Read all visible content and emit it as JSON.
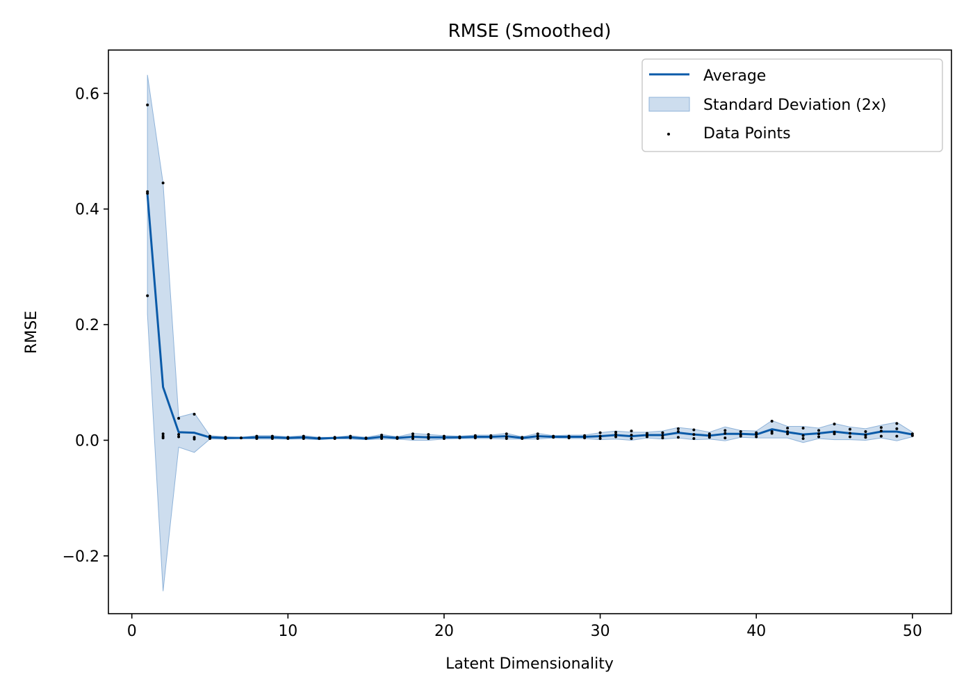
{
  "chart_data": {
    "type": "line",
    "title": "RMSE (Smoothed)",
    "xlabel": "Latent Dimensionality",
    "ylabel": "RMSE",
    "xlim": [
      -1.5,
      52.5
    ],
    "ylim": [
      -0.3,
      0.675
    ],
    "xticks": [
      0,
      10,
      20,
      30,
      40,
      50
    ],
    "xtick_labels": [
      "0",
      "10",
      "20",
      "30",
      "40",
      "50"
    ],
    "yticks": [
      -0.2,
      0.0,
      0.2,
      0.4,
      0.6
    ],
    "ytick_labels": [
      "−0.2",
      "0.0",
      "0.2",
      "0.4",
      "0.6"
    ],
    "grid": false,
    "legend_position": "top-right",
    "colors": {
      "line": "#0a5aa8",
      "band": "#bcd2e8",
      "band_edge": "#8fb3d9",
      "points": "#000000"
    },
    "series": [
      {
        "name": "Average",
        "kind": "line",
        "x": [
          1,
          2,
          3,
          4,
          5,
          6,
          7,
          8,
          9,
          10,
          11,
          12,
          13,
          14,
          15,
          16,
          17,
          18,
          19,
          20,
          21,
          22,
          23,
          24,
          25,
          26,
          27,
          28,
          29,
          30,
          31,
          32,
          33,
          34,
          35,
          36,
          37,
          38,
          39,
          40,
          41,
          42,
          43,
          44,
          45,
          46,
          47,
          48,
          49,
          50
        ],
        "y": [
          0.425,
          0.092,
          0.014,
          0.013,
          0.005,
          0.004,
          0.004,
          0.005,
          0.005,
          0.004,
          0.005,
          0.003,
          0.004,
          0.005,
          0.003,
          0.006,
          0.004,
          0.006,
          0.005,
          0.005,
          0.005,
          0.006,
          0.006,
          0.007,
          0.004,
          0.007,
          0.006,
          0.006,
          0.006,
          0.007,
          0.009,
          0.007,
          0.009,
          0.009,
          0.013,
          0.01,
          0.008,
          0.011,
          0.011,
          0.01,
          0.019,
          0.014,
          0.01,
          0.012,
          0.015,
          0.012,
          0.01,
          0.015,
          0.015,
          0.01
        ]
      },
      {
        "name": "Standard Deviation (2x)",
        "kind": "band",
        "x": [
          1,
          2,
          3,
          4,
          5,
          6,
          7,
          8,
          9,
          10,
          11,
          12,
          13,
          14,
          15,
          16,
          17,
          18,
          19,
          20,
          21,
          22,
          23,
          24,
          25,
          26,
          27,
          28,
          29,
          30,
          31,
          32,
          33,
          34,
          35,
          36,
          37,
          38,
          39,
          40,
          41,
          42,
          43,
          44,
          45,
          46,
          47,
          48,
          49,
          50
        ],
        "upper": [
          0.632,
          0.445,
          0.04,
          0.047,
          0.008,
          0.006,
          0.005,
          0.008,
          0.008,
          0.006,
          0.008,
          0.005,
          0.005,
          0.008,
          0.005,
          0.01,
          0.006,
          0.012,
          0.01,
          0.008,
          0.007,
          0.009,
          0.009,
          0.012,
          0.006,
          0.012,
          0.008,
          0.009,
          0.009,
          0.013,
          0.016,
          0.014,
          0.014,
          0.016,
          0.022,
          0.019,
          0.014,
          0.023,
          0.017,
          0.016,
          0.034,
          0.024,
          0.024,
          0.021,
          0.029,
          0.023,
          0.02,
          0.026,
          0.031,
          0.014
        ],
        "lower": [
          0.218,
          -0.261,
          -0.012,
          -0.021,
          0.002,
          0.002,
          0.003,
          0.002,
          0.002,
          0.002,
          0.002,
          0.001,
          0.003,
          0.002,
          0.001,
          0.002,
          0.002,
          0.0,
          0.0,
          0.002,
          0.003,
          0.003,
          0.003,
          0.002,
          0.002,
          0.002,
          0.004,
          0.003,
          0.003,
          0.001,
          0.002,
          0.0,
          0.004,
          0.002,
          0.004,
          0.001,
          0.002,
          -0.001,
          0.005,
          0.004,
          0.004,
          0.004,
          -0.004,
          0.003,
          0.001,
          0.001,
          0.0,
          0.004,
          -0.001,
          0.006
        ]
      },
      {
        "name": "Data Points",
        "kind": "scatter",
        "points": [
          [
            1,
            0.58
          ],
          [
            1,
            0.43
          ],
          [
            1,
            0.427
          ],
          [
            1,
            0.25
          ],
          [
            2,
            0.445
          ],
          [
            2,
            0.011
          ],
          [
            2,
            0.007
          ],
          [
            2,
            0.004
          ],
          [
            3,
            0.038
          ],
          [
            3,
            0.01
          ],
          [
            3,
            0.006
          ],
          [
            4,
            0.045
          ],
          [
            4,
            0.005
          ],
          [
            4,
            0.002
          ],
          [
            5,
            0.007
          ],
          [
            5,
            0.004
          ],
          [
            5,
            0.003
          ],
          [
            6,
            0.005
          ],
          [
            6,
            0.004
          ],
          [
            6,
            0.003
          ],
          [
            7,
            0.004
          ],
          [
            7,
            0.004
          ],
          [
            8,
            0.007
          ],
          [
            8,
            0.005
          ],
          [
            8,
            0.003
          ],
          [
            9,
            0.007
          ],
          [
            9,
            0.005
          ],
          [
            9,
            0.003
          ],
          [
            10,
            0.005
          ],
          [
            10,
            0.003
          ],
          [
            11,
            0.007
          ],
          [
            11,
            0.005
          ],
          [
            11,
            0.003
          ],
          [
            12,
            0.004
          ],
          [
            12,
            0.003
          ],
          [
            13,
            0.005
          ],
          [
            13,
            0.003
          ],
          [
            14,
            0.007
          ],
          [
            14,
            0.004
          ],
          [
            15,
            0.004
          ],
          [
            15,
            0.003
          ],
          [
            16,
            0.009
          ],
          [
            16,
            0.006
          ],
          [
            16,
            0.003
          ],
          [
            17,
            0.005
          ],
          [
            17,
            0.003
          ],
          [
            18,
            0.011
          ],
          [
            18,
            0.007
          ],
          [
            18,
            0.003
          ],
          [
            19,
            0.01
          ],
          [
            19,
            0.006
          ],
          [
            19,
            0.003
          ],
          [
            20,
            0.007
          ],
          [
            20,
            0.003
          ],
          [
            21,
            0.006
          ],
          [
            21,
            0.004
          ],
          [
            22,
            0.008
          ],
          [
            22,
            0.006
          ],
          [
            22,
            0.004
          ],
          [
            23,
            0.008
          ],
          [
            23,
            0.006
          ],
          [
            23,
            0.004
          ],
          [
            24,
            0.011
          ],
          [
            24,
            0.006
          ],
          [
            24,
            0.003
          ],
          [
            25,
            0.005
          ],
          [
            25,
            0.003
          ],
          [
            26,
            0.011
          ],
          [
            26,
            0.007
          ],
          [
            26,
            0.003
          ],
          [
            27,
            0.007
          ],
          [
            27,
            0.005
          ],
          [
            28,
            0.007
          ],
          [
            28,
            0.004
          ],
          [
            29,
            0.008
          ],
          [
            29,
            0.006
          ],
          [
            29,
            0.004
          ],
          [
            30,
            0.013
          ],
          [
            30,
            0.007
          ],
          [
            30,
            0.003
          ],
          [
            31,
            0.014
          ],
          [
            31,
            0.01
          ],
          [
            31,
            0.006
          ],
          [
            32,
            0.016
          ],
          [
            32,
            0.009
          ],
          [
            32,
            0.003
          ],
          [
            33,
            0.012
          ],
          [
            33,
            0.009
          ],
          [
            33,
            0.006
          ],
          [
            34,
            0.013
          ],
          [
            34,
            0.008
          ],
          [
            34,
            0.004
          ],
          [
            35,
            0.02
          ],
          [
            35,
            0.015
          ],
          [
            35,
            0.005
          ],
          [
            36,
            0.018
          ],
          [
            36,
            0.01
          ],
          [
            36,
            0.003
          ],
          [
            37,
            0.011
          ],
          [
            37,
            0.008
          ],
          [
            37,
            0.005
          ],
          [
            38,
            0.017
          ],
          [
            38,
            0.012
          ],
          [
            38,
            0.004
          ],
          [
            39,
            0.015
          ],
          [
            39,
            0.01
          ],
          [
            39,
            0.007
          ],
          [
            40,
            0.013
          ],
          [
            40,
            0.01
          ],
          [
            40,
            0.006
          ],
          [
            41,
            0.033
          ],
          [
            41,
            0.015
          ],
          [
            41,
            0.012
          ],
          [
            42,
            0.021
          ],
          [
            42,
            0.015
          ],
          [
            42,
            0.011
          ],
          [
            43,
            0.021
          ],
          [
            43,
            0.008
          ],
          [
            43,
            0.003
          ],
          [
            44,
            0.017
          ],
          [
            44,
            0.011
          ],
          [
            44,
            0.006
          ],
          [
            45,
            0.028
          ],
          [
            45,
            0.014
          ],
          [
            45,
            0.011
          ],
          [
            46,
            0.019
          ],
          [
            46,
            0.012
          ],
          [
            46,
            0.006
          ],
          [
            47,
            0.015
          ],
          [
            47,
            0.009
          ],
          [
            47,
            0.005
          ],
          [
            48,
            0.022
          ],
          [
            48,
            0.016
          ],
          [
            48,
            0.007
          ],
          [
            49,
            0.029
          ],
          [
            49,
            0.02
          ],
          [
            49,
            0.007
          ],
          [
            50,
            0.011
          ],
          [
            50,
            0.008
          ]
        ]
      }
    ]
  }
}
